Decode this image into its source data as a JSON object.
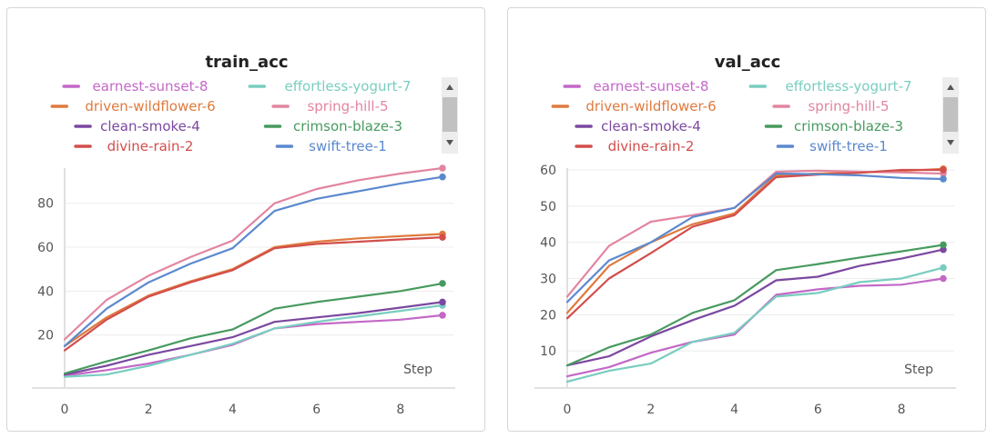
{
  "series_colors": {
    "earnest-sunset-8": "#c368c7",
    "effortless-yogurt-7": "#79cdc0",
    "driven-wildflower-6": "#df7a3e",
    "spring-hill-5": "#e285a0",
    "clean-smoke-4": "#7b48a0",
    "crimson-blaze-3": "#479a5f",
    "divine-rain-2": "#d24e4c",
    "swift-tree-1": "#5b89ce"
  },
  "chart_data": [
    {
      "type": "line",
      "title": "train_acc",
      "xlabel": "Step",
      "ylabel": "",
      "xlim": [
        0,
        9
      ],
      "ylim": [
        0,
        96
      ],
      "x_ticks": [
        0,
        2,
        4,
        6,
        8
      ],
      "y_ticks": [
        20,
        40,
        60,
        80
      ],
      "grid": true,
      "legend_placement": "top",
      "x": [
        0,
        1,
        2,
        3,
        4,
        5,
        6,
        7,
        8,
        9
      ],
      "series": [
        {
          "name": "earnest-sunset-8",
          "values": [
            1.5,
            4,
            7,
            11,
            15.5,
            23,
            25,
            26,
            27,
            29
          ]
        },
        {
          "name": "effortless-yogurt-7",
          "values": [
            1,
            2,
            6,
            11,
            16,
            23,
            26,
            28.5,
            31,
            33.5
          ]
        },
        {
          "name": "driven-wildflower-6",
          "values": [
            15,
            28,
            38,
            44.5,
            50,
            60,
            62.5,
            64,
            65,
            66
          ]
        },
        {
          "name": "spring-hill-5",
          "values": [
            18,
            36,
            47,
            55.5,
            63,
            80,
            86.5,
            90.5,
            93.5,
            96
          ]
        },
        {
          "name": "clean-smoke-4",
          "values": [
            2,
            6,
            11,
            15,
            19,
            26,
            28,
            30,
            32.5,
            35
          ]
        },
        {
          "name": "crimson-blaze-3",
          "values": [
            2.5,
            8,
            13,
            18.5,
            22.5,
            32,
            35,
            37.5,
            40,
            43.5
          ]
        },
        {
          "name": "divine-rain-2",
          "values": [
            13,
            27,
            37.5,
            44,
            49.5,
            59.5,
            61.5,
            62.5,
            63.5,
            64.5
          ]
        },
        {
          "name": "swift-tree-1",
          "values": [
            15,
            32,
            44,
            52.5,
            59.5,
            76.5,
            82,
            85.5,
            89,
            92
          ]
        }
      ]
    },
    {
      "type": "line",
      "title": "val_acc",
      "xlabel": "Step",
      "ylabel": "",
      "xlim": [
        0,
        9
      ],
      "ylim": [
        0,
        60
      ],
      "x_ticks": [
        0,
        2,
        4,
        6,
        8
      ],
      "y_ticks": [
        10,
        20,
        30,
        40,
        50,
        60
      ],
      "grid": true,
      "legend_placement": "top",
      "x": [
        0,
        1,
        2,
        3,
        4,
        5,
        6,
        7,
        8,
        9
      ],
      "series": [
        {
          "name": "earnest-sunset-8",
          "values": [
            3,
            5.5,
            9.5,
            12.5,
            14.5,
            25.5,
            27,
            28,
            28.3,
            30
          ]
        },
        {
          "name": "effortless-yogurt-7",
          "values": [
            1.5,
            4.5,
            6.5,
            12.5,
            15,
            25,
            26,
            29,
            30,
            33
          ]
        },
        {
          "name": "driven-wildflower-6",
          "values": [
            20.5,
            33.5,
            40,
            45,
            48,
            58.5,
            59,
            59.3,
            59.7,
            60.3
          ]
        },
        {
          "name": "spring-hill-5",
          "values": [
            25,
            39,
            45.7,
            47.5,
            49.5,
            59.5,
            59.8,
            59.5,
            59.3,
            59
          ]
        },
        {
          "name": "clean-smoke-4",
          "values": [
            6,
            8.5,
            14,
            18.5,
            22.5,
            29.5,
            30.5,
            33.5,
            35.5,
            38
          ]
        },
        {
          "name": "crimson-blaze-3",
          "values": [
            6,
            11,
            14.5,
            20.5,
            24,
            32.3,
            34,
            35.8,
            37.5,
            39.3
          ]
        },
        {
          "name": "divine-rain-2",
          "values": [
            19,
            30,
            37,
            44.3,
            47.5,
            58,
            58.7,
            59.2,
            60,
            60
          ]
        },
        {
          "name": "swift-tree-1",
          "values": [
            23.5,
            35,
            40,
            47,
            49.5,
            59,
            58.8,
            58.5,
            57.8,
            57.5
          ]
        }
      ]
    }
  ]
}
